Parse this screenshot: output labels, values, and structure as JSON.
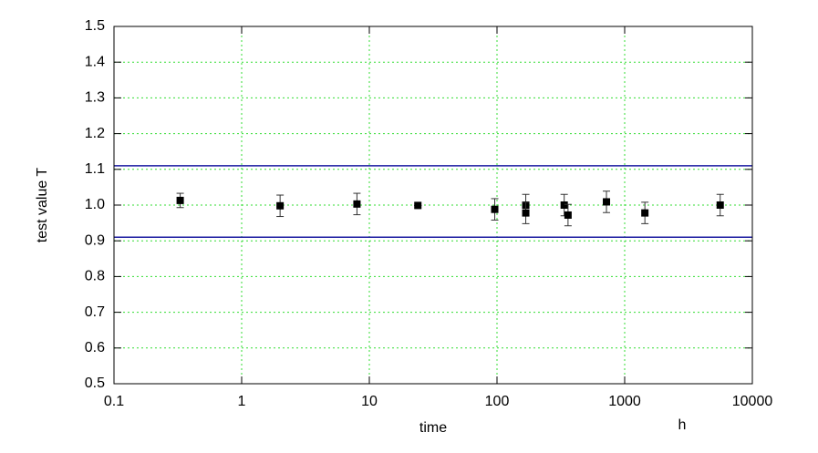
{
  "chart_data": {
    "type": "scatter",
    "x_label": "time",
    "x_unit": "h",
    "y_label": "test value T",
    "x_log": true,
    "grid": true,
    "xlim": [
      0.1,
      10000
    ],
    "xticks": [
      0.1,
      1,
      10,
      100,
      1000,
      10000
    ],
    "ylim": [
      0.5,
      1.5
    ],
    "yticks": [
      0.5,
      0.6,
      0.7,
      0.8,
      0.9,
      {
        "value": 1,
        "label": "1.0"
      },
      1.1,
      1.2,
      1.3,
      1.4,
      1.5
    ],
    "series": [
      {
        "color": "#000000",
        "x": [
          0.33,
          2,
          8,
          24,
          96,
          168,
          168,
          336,
          360,
          720,
          1440,
          5600
        ],
        "values": [
          1.013,
          0.998,
          1.003,
          0.999,
          0.988,
          1.0,
          0.978,
          1.0,
          0.972,
          1.009,
          0.978,
          1.0
        ],
        "errors": [
          0.02,
          0.03,
          0.03,
          0,
          0.03,
          0.03,
          0.03,
          0.03,
          0.03,
          0.03,
          0.03,
          0.03
        ]
      }
    ],
    "reference_lines": [
      {
        "value": 1.11,
        "color": "#1a1aa0"
      },
      {
        "value": 0.91,
        "color": "#1a1aa0"
      }
    ]
  }
}
